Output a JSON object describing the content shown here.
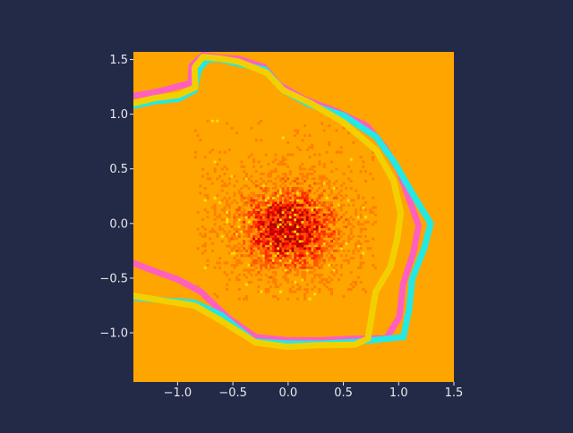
{
  "theme": {
    "page_background": "#232a47",
    "axis_text_color": "#e8e8ee",
    "plot_background": "#ffa500",
    "density_colormap": [
      "#ffa500",
      "#ff8000",
      "#ff5a00",
      "#ff2a00",
      "#e00000",
      "#a80000"
    ],
    "highlight_color": "#ffe000",
    "contour_colors": {
      "magenta": "#ff5fbf",
      "cyan": "#23e8e4",
      "yellow": "#f2d000"
    }
  },
  "chart_data": {
    "type": "heatmap",
    "title": "",
    "xlabel": "",
    "ylabel": "",
    "xlim": [
      -1.4,
      1.5
    ],
    "ylim": [
      -1.45,
      1.57
    ],
    "xticks": [
      -1.0,
      -0.5,
      0.0,
      0.5,
      1.0,
      1.5
    ],
    "xtick_labels": [
      "−1.0",
      "−0.5",
      "0.0",
      "0.5",
      "1.0",
      "1.5"
    ],
    "yticks": [
      1.5,
      1.0,
      0.5,
      0.0,
      -0.5,
      -1.0
    ],
    "ytick_labels": [
      "1.5",
      "1.0",
      "0.5",
      "0.0",
      "−0.5",
      "−1.0"
    ],
    "grid": false,
    "legend": "none",
    "density": {
      "description_values": "2D histogram of scattered points, densest near the origin",
      "center": [
        0.0,
        -0.05
      ],
      "spread": [
        0.38,
        0.33
      ],
      "extent_x": [
        -0.85,
        0.8
      ],
      "extent_y": [
        -0.7,
        0.95
      ],
      "bin_size": 0.022
    },
    "contours": [
      {
        "color_key": "magenta",
        "points": [
          [
            -1.4,
            1.17
          ],
          [
            -1.2,
            1.2
          ],
          [
            -1.05,
            1.25
          ],
          [
            -0.88,
            1.29
          ],
          [
            -0.86,
            1.45
          ],
          [
            -0.78,
            1.53
          ],
          [
            -0.6,
            1.52
          ],
          [
            -0.45,
            1.5
          ],
          [
            -0.22,
            1.43
          ],
          [
            -0.08,
            1.27
          ],
          [
            0.15,
            1.14
          ],
          [
            0.45,
            1.03
          ],
          [
            0.72,
            0.9
          ],
          [
            0.88,
            0.7
          ],
          [
            1.0,
            0.48
          ],
          [
            1.1,
            0.2
          ],
          [
            1.18,
            -0.02
          ],
          [
            1.13,
            -0.25
          ],
          [
            1.05,
            -0.55
          ],
          [
            1.0,
            -0.85
          ],
          [
            0.9,
            -1.05
          ],
          [
            0.6,
            -1.06
          ],
          [
            0.3,
            -1.06
          ],
          [
            0.0,
            -1.08
          ],
          [
            -0.3,
            -1.05
          ],
          [
            -0.55,
            -0.85
          ],
          [
            -0.78,
            -0.62
          ],
          [
            -1.0,
            -0.52
          ],
          [
            -1.2,
            -0.45
          ],
          [
            -1.4,
            -0.35
          ]
        ]
      },
      {
        "color_key": "cyan",
        "points": [
          [
            -1.4,
            1.07
          ],
          [
            -1.2,
            1.12
          ],
          [
            -1.0,
            1.15
          ],
          [
            -0.84,
            1.22
          ],
          [
            -0.82,
            1.4
          ],
          [
            -0.75,
            1.5
          ],
          [
            -0.62,
            1.5
          ],
          [
            -0.45,
            1.47
          ],
          [
            -0.2,
            1.4
          ],
          [
            -0.05,
            1.22
          ],
          [
            0.2,
            1.1
          ],
          [
            0.5,
            0.98
          ],
          [
            0.8,
            0.8
          ],
          [
            0.97,
            0.55
          ],
          [
            1.12,
            0.28
          ],
          [
            1.3,
            0.0
          ],
          [
            1.22,
            -0.22
          ],
          [
            1.12,
            -0.5
          ],
          [
            1.1,
            -0.78
          ],
          [
            1.05,
            -1.05
          ],
          [
            0.6,
            -1.08
          ],
          [
            0.3,
            -1.1
          ],
          [
            0.0,
            -1.1
          ],
          [
            -0.3,
            -1.08
          ],
          [
            -0.6,
            -0.85
          ],
          [
            -0.85,
            -0.73
          ],
          [
            -1.1,
            -0.7
          ],
          [
            -1.4,
            -0.68
          ]
        ]
      },
      {
        "color_key": "yellow",
        "points": [
          [
            -1.4,
            1.1
          ],
          [
            -1.2,
            1.14
          ],
          [
            -1.0,
            1.18
          ],
          [
            -0.85,
            1.25
          ],
          [
            -0.84,
            1.42
          ],
          [
            -0.77,
            1.52
          ],
          [
            -0.62,
            1.52
          ],
          [
            -0.45,
            1.49
          ],
          [
            -0.2,
            1.38
          ],
          [
            -0.05,
            1.22
          ],
          [
            0.2,
            1.1
          ],
          [
            0.5,
            0.92
          ],
          [
            0.8,
            0.68
          ],
          [
            0.95,
            0.4
          ],
          [
            1.02,
            0.1
          ],
          [
            0.98,
            -0.15
          ],
          [
            0.92,
            -0.4
          ],
          [
            0.8,
            -0.62
          ],
          [
            0.75,
            -0.9
          ],
          [
            0.72,
            -1.05
          ],
          [
            0.6,
            -1.1
          ],
          [
            0.3,
            -1.12
          ],
          [
            0.0,
            -1.12
          ],
          [
            -0.3,
            -1.1
          ],
          [
            -0.6,
            -0.9
          ],
          [
            -0.85,
            -0.75
          ],
          [
            -1.1,
            -0.72
          ],
          [
            -1.4,
            -0.66
          ]
        ]
      }
    ]
  }
}
